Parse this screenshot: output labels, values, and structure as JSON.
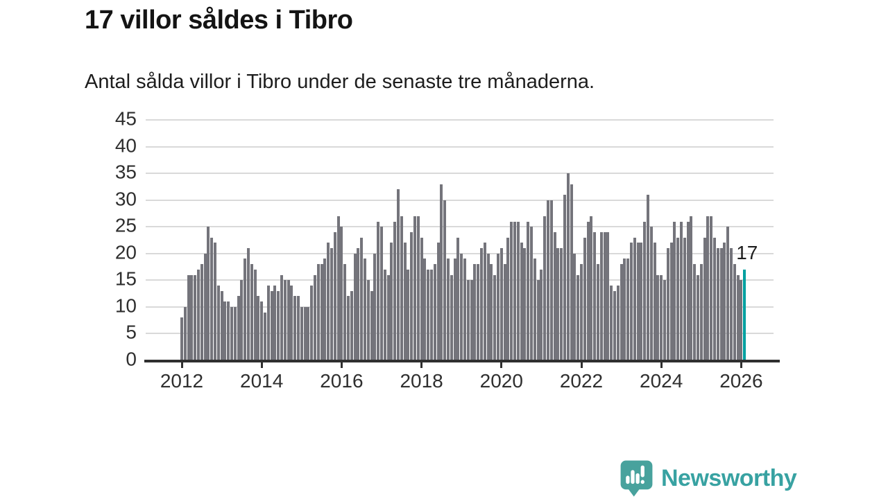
{
  "header": {
    "title": "17 villor såldes i Tibro",
    "subtitle": "Antal sålda villor i Tibro under de senaste tre månaderna."
  },
  "footer": {
    "brand": "Newsworthy",
    "brand_color": "#38a2a2",
    "icon": "newsworthy-speech-bubble-bar-chart-icon",
    "icon_color": "#48a29d"
  },
  "chart_data": {
    "type": "bar",
    "title": "17 villor såldes i Tibro",
    "subtitle": "Antal sålda villor i Tibro under de senaste tre månaderna.",
    "xlabel": "",
    "ylabel": "",
    "x_start": "2012-01",
    "x_end": "2026-02",
    "interval": "monthly",
    "values": [
      8,
      10,
      16,
      16,
      16,
      17,
      18,
      20,
      25,
      23,
      22,
      14,
      13,
      11,
      11,
      10,
      10,
      12,
      15,
      19,
      21,
      18,
      17,
      12,
      11,
      9,
      14,
      13,
      14,
      13,
      16,
      15,
      15,
      14,
      12,
      12,
      10,
      10,
      10,
      14,
      16,
      18,
      18,
      19,
      22,
      21,
      24,
      27,
      25,
      18,
      12,
      13,
      20,
      21,
      23,
      19,
      15,
      13,
      20,
      26,
      25,
      17,
      16,
      22,
      26,
      32,
      27,
      22,
      17,
      24,
      27,
      27,
      23,
      19,
      17,
      17,
      18,
      22,
      33,
      30,
      19,
      16,
      19,
      23,
      20,
      19,
      15,
      15,
      18,
      18,
      21,
      22,
      20,
      18,
      16,
      20,
      21,
      18,
      23,
      26,
      26,
      26,
      22,
      21,
      26,
      25,
      19,
      15,
      17,
      27,
      30,
      30,
      24,
      21,
      21,
      31,
      35,
      33,
      20,
      16,
      18,
      23,
      26,
      27,
      24,
      18,
      24,
      24,
      24,
      14,
      13,
      14,
      18,
      19,
      19,
      22,
      23,
      22,
      22,
      26,
      31,
      25,
      22,
      16,
      16,
      15,
      21,
      22,
      26,
      23,
      26,
      23,
      26,
      27,
      18,
      16,
      18,
      23,
      27,
      27,
      23,
      21,
      21,
      22,
      25,
      21,
      18,
      16,
      15,
      17
    ],
    "highlight_index": 169,
    "annotation": {
      "text": "17"
    },
    "ylim": [
      0,
      45
    ],
    "yticks": [
      0,
      5,
      10,
      15,
      20,
      25,
      30,
      35,
      40,
      45
    ],
    "xticks": [
      2012,
      2014,
      2016,
      2018,
      2020,
      2022,
      2024,
      2026
    ],
    "grid": "horizontal",
    "legend": "none",
    "bar_color": "#74747b",
    "highlight_color": "#00a0a0",
    "grid_color": "#d9d9d9",
    "axis_color": "#2f2f2f",
    "label_color": "#2f2f2f"
  }
}
